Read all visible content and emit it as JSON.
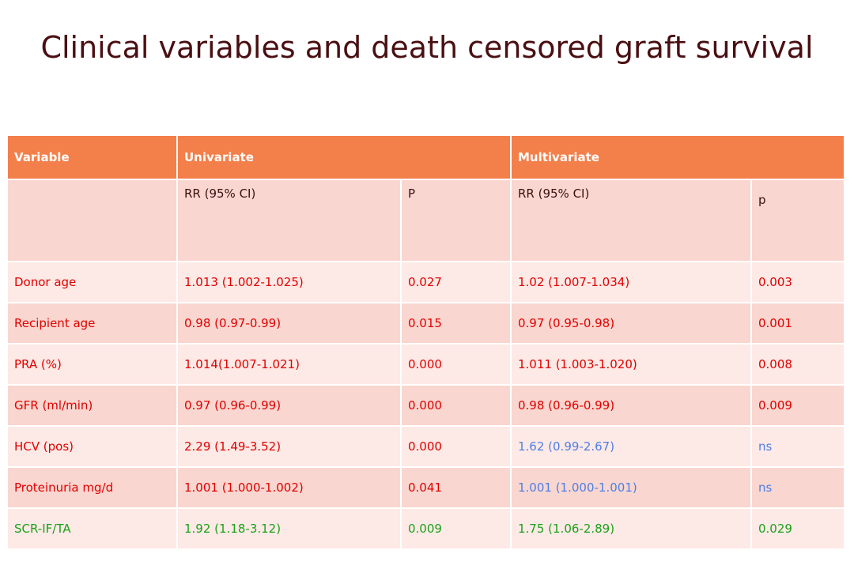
{
  "title": "Clinical variables and death censored graft survival",
  "table": {
    "headers": [
      "Variable",
      "Univariate",
      "Multivariate"
    ],
    "subheaders": [
      "",
      "RR (95% CI)",
      "P",
      "RR (95% CI)",
      "p"
    ],
    "rows": [
      {
        "variable": "Donor age",
        "uni_rr": "1.013 (1.002-1.025)",
        "uni_p": "0.027",
        "multi_rr": "1.02 (1.007-1.034)",
        "multi_p": "0.003"
      },
      {
        "variable": "Recipient age",
        "uni_rr": "0.98 (0.97-0.99)",
        "uni_p": "0.015",
        "multi_rr": "0.97 (0.95-0.98)",
        "multi_p": "0.001"
      },
      {
        "variable": "PRA (%)",
        "uni_rr": "1.014(1.007-1.021)",
        "uni_p": "0.000",
        "multi_rr": "1.011 (1.003-1.020)",
        "multi_p": "0.008"
      },
      {
        "variable": "GFR (ml/min)",
        "uni_rr": "0.97 (0.96-0.99)",
        "uni_p": "0.000",
        "multi_rr": "0.98 (0.96-0.99)",
        "multi_p": "0.009"
      },
      {
        "variable": "HCV (pos)",
        "uni_rr": "2.29 (1.49-3.52)",
        "uni_p": "0.000",
        "multi_rr": "1.62 (0.99-2.67)",
        "multi_p": "ns"
      },
      {
        "variable": "Proteinuria mg/d",
        "uni_rr": "1.001 (1.000-1.002)",
        "uni_p": "0.041",
        "multi_rr": "1.001 (1.000-1.001)",
        "multi_p": "ns"
      },
      {
        "variable": "SCR-IF/TA",
        "uni_rr": "1.92 (1.18-3.12)",
        "uni_p": "0.009",
        "multi_rr": "1.75 (1.06-2.89)",
        "multi_p": "0.029"
      }
    ]
  },
  "colors": {
    "title": "#4a0f12",
    "header_bg": "#f37f4a",
    "row_light": "#fde9e5",
    "row_dark": "#f9d6cf",
    "text_red": "#e00000",
    "text_blue": "#4d7fe6",
    "text_green": "#1aa11a"
  }
}
